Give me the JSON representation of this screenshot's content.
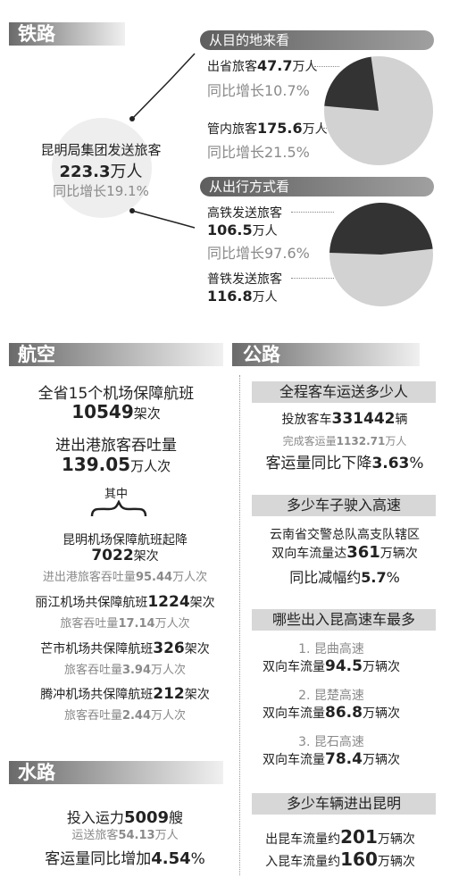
{
  "rail": {
    "title": "铁路",
    "group_label": "昆明局集团发送旅客",
    "group_value": "223.3",
    "group_unit": "万人",
    "group_growth": "同比增长19.1%",
    "by_destination": {
      "title": "从目的地来看",
      "out_label": "出省旅客",
      "out_value": "47.7",
      "out_unit": "万人",
      "out_growth": "同比增长10.7%",
      "in_label": "管内旅客",
      "in_value": "175.6",
      "in_unit": "万人",
      "in_growth": "同比增长21.5%",
      "share_out": 0.214,
      "color_out": "#333333",
      "color_in": "#d2d2d2"
    },
    "by_mode": {
      "title": "从出行方式看",
      "hsr_label": "高铁发送旅客",
      "hsr_value": "106.5",
      "hsr_unit": "万人",
      "hsr_growth": "同比增长97.6%",
      "normal_label": "普铁发送旅客",
      "normal_value": "116.8",
      "normal_unit": "万人",
      "share_hsr": 0.477,
      "color_hsr": "#333333",
      "color_normal": "#d2d2d2"
    }
  },
  "air": {
    "title": "航空",
    "line1_label": "全省15个机场保障航班",
    "line1_value": "10549",
    "line1_unit": "架次",
    "line2_label": "进出港旅客吞吐量",
    "line2_value": "139.05",
    "line2_unit": "万人次",
    "among": "其中",
    "km_label": "昆明机场保障航班起降",
    "km_value": "7022",
    "km_unit": "架次",
    "km_sub_label": "进出港旅客吞吐量",
    "km_sub_value": "95.44",
    "km_sub_unit": "万人次",
    "lj_label": "丽江机场共保障航班",
    "lj_value": "1224",
    "lj_unit": "架次",
    "lj_sub_label": "旅客吞吐量",
    "lj_sub_value": "17.14",
    "lj_sub_unit": "万人次",
    "ms_label": "芒市机场共保障航班",
    "ms_value": "326",
    "ms_unit": "架次",
    "ms_sub_label": "旅客吞吐量",
    "ms_sub_value": "3.94",
    "ms_sub_unit": "万人次",
    "tc_label": "腾冲机场共保障航班",
    "tc_value": "212",
    "tc_unit": "架次",
    "tc_sub_label": "旅客吞吐量",
    "tc_sub_value": "2.44",
    "tc_sub_unit": "万人次"
  },
  "water": {
    "title": "水路",
    "cap_label": "投入运力",
    "cap_value": "5009",
    "cap_unit": "艘",
    "pass_label": "运送旅客",
    "pass_value": "54.13",
    "pass_unit": "万人",
    "growth_label": "客运量同比增加",
    "growth_value": "4.54",
    "growth_unit": "%"
  },
  "road": {
    "title": "公路",
    "q1": "全程客车运送多少人",
    "bus_label": "投放客车",
    "bus_value": "331442",
    "bus_unit": "辆",
    "done_label": "完成客运量",
    "done_value": "1132.71",
    "done_unit": "万人",
    "drop_label": "客运量同比下降",
    "drop_value": "3.63",
    "drop_unit": "%",
    "q2": "多少车子驶入高速",
    "hw_line1": "云南省交警总队高支队辖区",
    "hw_label": "双向车流量达",
    "hw_value": "361",
    "hw_unit": "万辆次",
    "hw_drop_label": "同比减幅约",
    "hw_drop_value": "5.7",
    "hw_drop_unit": "%",
    "q3": "哪些出入昆高速车最多",
    "r1_name": "1. 昆曲高速",
    "r1_label": "双向车流量",
    "r1_value": "94.5",
    "r1_unit": "万辆次",
    "r2_name": "2. 昆楚高速",
    "r2_label": "双向车流量",
    "r2_value": "86.8",
    "r2_unit": "万辆次",
    "r3_name": "3. 昆石高速",
    "r3_label": "双向车流量",
    "r3_value": "78.4",
    "r3_unit": "万辆次",
    "q4": "多少车辆进出昆明",
    "out_label": "出昆车流量约",
    "out_value": "201",
    "out_unit": "万辆次",
    "in_label": "入昆车流量约",
    "in_value": "160",
    "in_unit": "万辆次"
  }
}
